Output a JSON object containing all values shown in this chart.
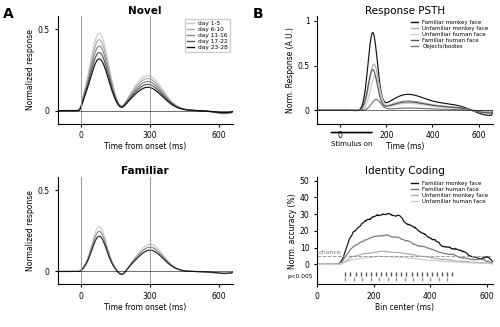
{
  "novel_title": "Novel",
  "familiar_title": "Familiar",
  "psth_title": "Response PSTH",
  "identity_title": "Identity Coding",
  "xlabel_time": "Time from onset (ms)",
  "xlabel_time_ms": "Time (ms)",
  "xlabel_bin": "Bin center (ms)",
  "ylabel_norm": "Normalized response",
  "ylabel_norm_resp": "Norm. Response (A.U.)",
  "ylabel_norm_acc": "Norm. accuracy (%)",
  "panel_a": "A",
  "panel_b": "B",
  "novel_legend": [
    "day 1-5",
    "day 6-10",
    "day 11-16",
    "day 17-22",
    "day 23-28"
  ],
  "novel_colors": [
    "#cccccc",
    "#aaaaaa",
    "#888888",
    "#555555",
    "#111111"
  ],
  "familiar_colors": [
    "#cccccc",
    "#888888",
    "#222222"
  ],
  "psth_labels": [
    "Familiar monkey face",
    "Unfamiliar monkey face",
    "Unfamiliar human face",
    "Familiar human face",
    "Objects/bodies"
  ],
  "psth_colors": [
    "#111111",
    "#aaaaaa",
    "#cccccc",
    "#555555",
    "#777777"
  ],
  "identity_labels": [
    "Familiar monkey face",
    "Familiar human face",
    "Unfamiliar monkey face",
    "Unfamiliar human face"
  ],
  "identity_colors": [
    "#111111",
    "#777777",
    "#aaaaaa",
    "#cccccc"
  ],
  "chance_level": 5.0,
  "novel_amps": [
    0.48,
    0.44,
    0.4,
    0.36,
    0.32
  ],
  "fam_amps": [
    0.28,
    0.25,
    0.22
  ],
  "psth_amps": [
    0.88,
    0.52,
    0.38,
    0.46,
    0.12
  ],
  "id_amps": [
    32,
    18,
    8,
    5
  ]
}
